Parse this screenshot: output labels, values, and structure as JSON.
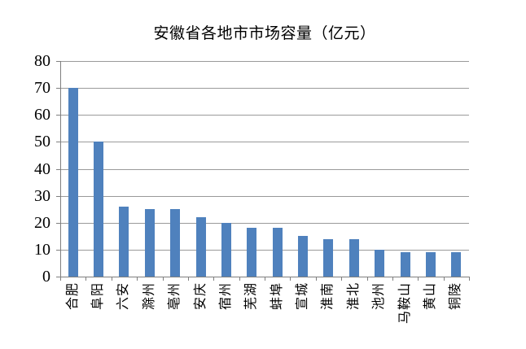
{
  "chart_data": {
    "type": "bar",
    "title": "安徽省各地市市场容量（亿元）",
    "categories": [
      "合肥",
      "阜阳",
      "六安",
      "滁州",
      "亳州",
      "安庆",
      "宿州",
      "芜湖",
      "蚌埠",
      "宣城",
      "淮南",
      "淮北",
      "池州",
      "马鞍山",
      "黄山",
      "铜陵"
    ],
    "values": [
      70,
      50,
      26,
      25,
      25,
      22,
      20,
      18,
      18,
      15,
      14,
      14,
      10,
      9,
      9,
      9
    ],
    "xlabel": "",
    "ylabel": "",
    "ylim": [
      0,
      80
    ],
    "ytick_interval": 10,
    "yticks": [
      0,
      10,
      20,
      30,
      40,
      50,
      60,
      70,
      80
    ],
    "grid": "horizontal-major",
    "legend": "none",
    "colors": {
      "bar": "#4f81bd",
      "gridline": "#9a9a9a",
      "axis": "#7f7f7f",
      "text": "#000000",
      "background": "#ffffff"
    }
  }
}
